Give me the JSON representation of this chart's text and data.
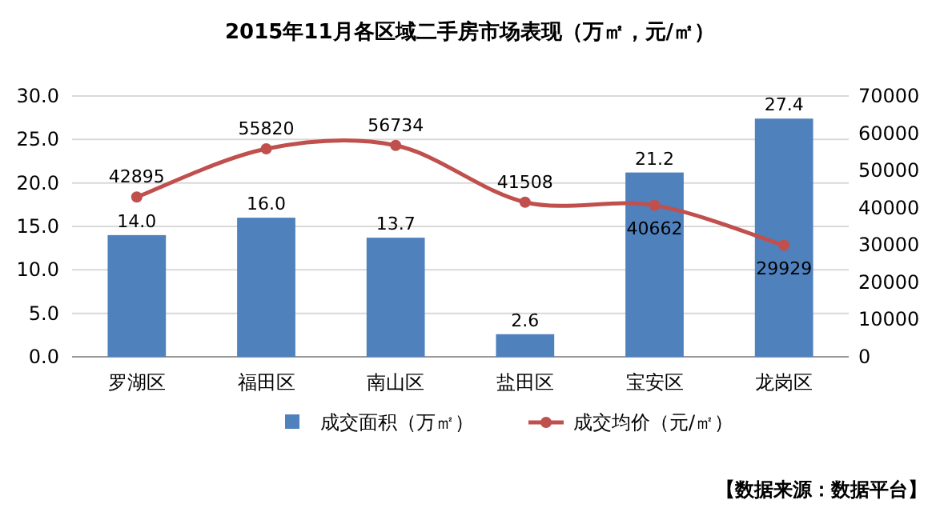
{
  "chart_data": {
    "type": "bar",
    "title": "2015年11月各区域二手房市场表现（万㎡，元/㎡）",
    "categories": [
      "罗湖区",
      "福田区",
      "南山区",
      "盐田区",
      "宝安区",
      "龙岗区"
    ],
    "series": [
      {
        "name": "成交面积（万㎡）",
        "color": "#4f81bd",
        "values": [
          14.0,
          16.0,
          13.7,
          2.6,
          21.2,
          27.4
        ],
        "value_labels": [
          "14.0",
          "16.0",
          "13.7",
          "2.6",
          "21.2",
          "27.4"
        ]
      },
      {
        "name": "成交均价（元/㎡）",
        "type": "line",
        "axis": "y2",
        "color": "#c0504d",
        "marker": "circle",
        "values": [
          42895,
          55820,
          56734,
          41508,
          40662,
          29929
        ],
        "value_labels": [
          "42895",
          "55820",
          "56734",
          "41508",
          "40662",
          "29929"
        ]
      }
    ],
    "ylim": [
      0,
      30
    ],
    "yticks": [
      {
        "value": 0,
        "label": "0.0"
      },
      {
        "value": 5,
        "label": "5.0"
      },
      {
        "value": 10,
        "label": "10.0"
      },
      {
        "value": 15,
        "label": "15.0"
      },
      {
        "value": 20,
        "label": "20.0"
      },
      {
        "value": 25,
        "label": "25.0"
      },
      {
        "value": 30,
        "label": "30.0"
      }
    ],
    "y2lim": [
      0,
      70000
    ],
    "y2ticks": [
      0,
      10000,
      20000,
      30000,
      40000,
      50000,
      60000,
      70000
    ],
    "grid": "y",
    "legend": "bottom",
    "annotations": [
      "【数据来源：数据平台】"
    ]
  }
}
